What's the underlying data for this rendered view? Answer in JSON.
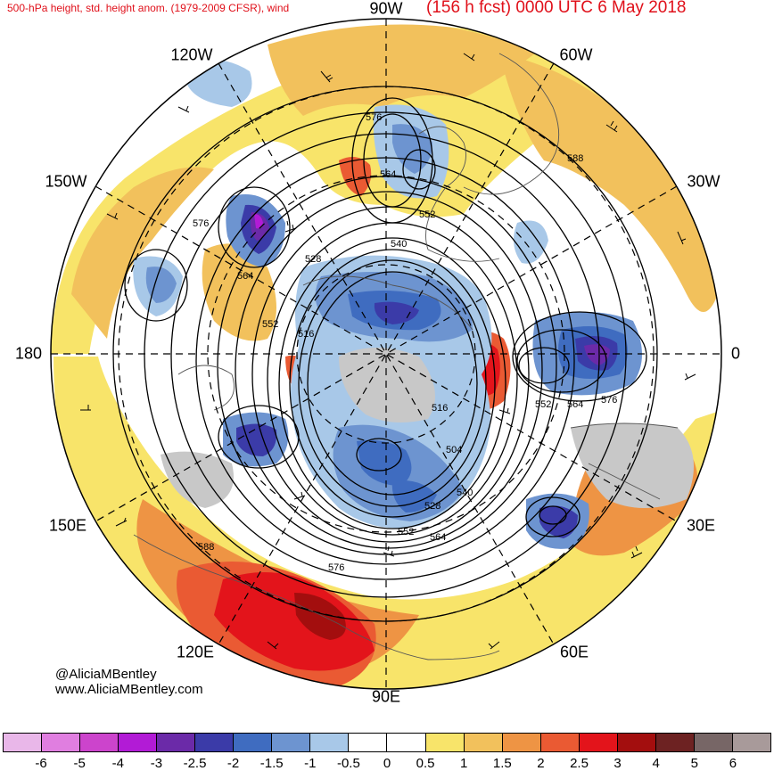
{
  "header": {
    "subtitle": "500-hPa height, std. height anom. (1979-2009 CFSR), wind",
    "valid_time": "(156 h fcst) 0000 UTC 6 May 2018"
  },
  "longitude_labels": {
    "lon_90w": "90W",
    "lon_60w": "60W",
    "lon_30w": "30W",
    "lon_0": "0",
    "lon_30e": "30E",
    "lon_60e": "60E",
    "lon_90e": "90E",
    "lon_120e": "120E",
    "lon_150e": "150E",
    "lon_180": "180",
    "lon_150w": "150W",
    "lon_120w": "120W"
  },
  "contour_labels": {
    "c1": "576",
    "c2": "564",
    "c3": "552",
    "c4": "540",
    "c5": "528",
    "c6": "576",
    "c7": "564",
    "c8": "552",
    "c9": "516",
    "c10": "588",
    "c11": "552",
    "c12": "564",
    "c13": "576",
    "c14": "516",
    "c15": "504",
    "c16": "528",
    "c17": "540",
    "c18": "552",
    "c19": "564",
    "c20": "576",
    "c21": "588"
  },
  "credits": {
    "handle": "@AliciaMBentley",
    "website": "www.AliciaMBentley.com"
  },
  "colorbar": {
    "colors": [
      "#e9b7e9",
      "#e07ee0",
      "#cc44cc",
      "#b21bd6",
      "#6b2aa8",
      "#3b3ba8",
      "#3f6cc0",
      "#6d94d0",
      "#a8c8e8",
      "#ffffff",
      "#ffffff",
      "#f8e46a",
      "#f2c15c",
      "#ee9444",
      "#ea5a33",
      "#e3141b",
      "#a30e0e",
      "#6d2222",
      "#776666",
      "#a89a9a"
    ],
    "ticks": [
      "-6",
      "-5",
      "-4",
      "-3",
      "-2.5",
      "-2",
      "-1.5",
      "-1",
      "-0.5",
      "0",
      "0.5",
      "1",
      "1.5",
      "2",
      "2.5",
      "3",
      "4",
      "5",
      "6"
    ]
  }
}
